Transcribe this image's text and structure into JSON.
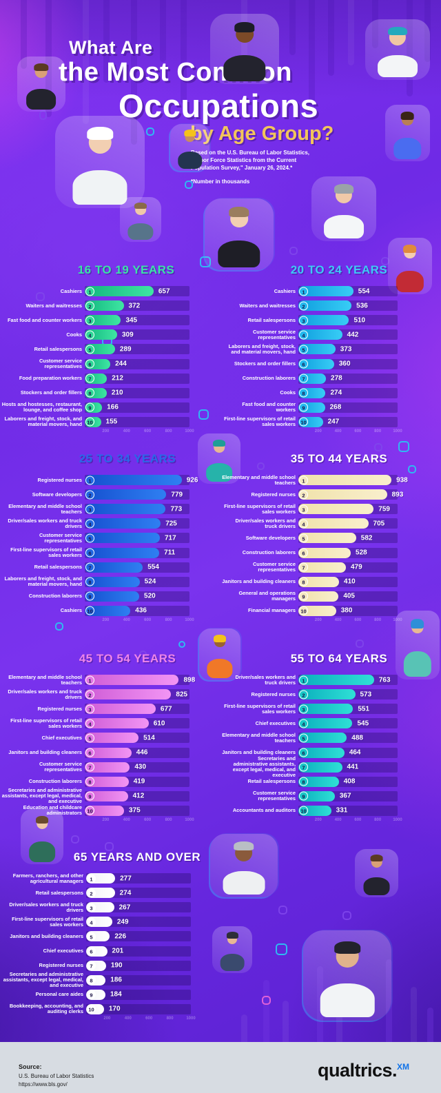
{
  "header": {
    "title_line1": "What Are",
    "title_line2": "the Most Common",
    "title_line3": "Occupations",
    "subtitle": "by Age Group?",
    "source_note": "Based on the U.S. Bureau of Labor Statistics, \"Labor Force Statistics from the Current Population Survey,\" January 26, 2024.*",
    "footnote": "*Number in thousands"
  },
  "chart_data": [
    {
      "type": "bar",
      "title": "16 TO 19 YEARS",
      "xlim": [
        0,
        1000
      ],
      "unit": "thousands",
      "title_color": "#3be3a6",
      "bar_gradient": [
        "#12b67e",
        "#3fe6a3"
      ],
      "rank_bg": "#2fd998",
      "categories": [
        "Cashiers",
        "Waiters and waitresses",
        "Fast food and counter workers",
        "Cooks",
        "Retail salespersons",
        "Customer service representatives",
        "Food preparation workers",
        "Stockers and order fillers",
        "Hosts and hostesses, restaurant, lounge, and coffee shop",
        "Laborers and freight, stock, and material movers, hand"
      ],
      "values": [
        657,
        372,
        345,
        309,
        289,
        244,
        212,
        210,
        166,
        155
      ]
    },
    {
      "type": "bar",
      "title": "20 TO 24 YEARS",
      "xlim": [
        0,
        1000
      ],
      "unit": "thousands",
      "title_color": "#3ec9f6",
      "bar_gradient": [
        "#0f9ede",
        "#38cdf6"
      ],
      "rank_bg": "#24baef",
      "categories": [
        "Cashiers",
        "Waiters and waitresses",
        "Retail salespersons",
        "Customer service representatives",
        "Laborers and freight, stock, and material movers, hand",
        "Stockers and order fillers",
        "Construction laborers",
        "Cooks",
        "Fast food and counter workers",
        "First-line supervisors of retail sales workers"
      ],
      "values": [
        554,
        536,
        510,
        442,
        373,
        360,
        278,
        274,
        268,
        247
      ]
    },
    {
      "type": "bar",
      "title": "25 TO 34 YEARS",
      "xlim": [
        0,
        1000
      ],
      "unit": "thousands",
      "title_color": "#2c67e8",
      "bar_gradient": [
        "#1550cf",
        "#2f7ff2"
      ],
      "rank_bg": "#2268e2",
      "categories": [
        "Registered nurses",
        "Software developers",
        "Elementary and middle school teachers",
        "Driver/sales workers and truck drivers",
        "Customer service representatives",
        "First-line supervisors of retail sales workers",
        "Retail salespersons",
        "Laborers and freight, stock, and material movers, hand",
        "Construction laborers",
        "Cashiers"
      ],
      "values": [
        926,
        779,
        773,
        725,
        717,
        711,
        554,
        524,
        520,
        436
      ]
    },
    {
      "type": "bar",
      "title": "35 TO 44 YEARS",
      "xlim": [
        0,
        1000
      ],
      "unit": "thousands",
      "title_color": "#ffffff",
      "bar_gradient": [
        "#f0e2ab",
        "#f9efcd"
      ],
      "rank_bg": "#f5e9c0",
      "categories": [
        "Elementary and middle school teachers",
        "Registered nurses",
        "First-line supervisors of retail sales workers",
        "Driver/sales workers and truck drivers",
        "Software developers",
        "Construction laborers",
        "Customer service representatives",
        "Janitors and building cleaners",
        "General and operations managers",
        "Financial managers"
      ],
      "values": [
        938,
        893,
        759,
        705,
        582,
        528,
        479,
        410,
        405,
        380
      ]
    },
    {
      "type": "bar",
      "title": "45 TO 54 YEARS",
      "xlim": [
        0,
        1000
      ],
      "unit": "thousands",
      "title_color": "#ee85e9",
      "bar_gradient": [
        "#cf5cd6",
        "#f295f4"
      ],
      "rank_bg": "#e478e6",
      "categories": [
        "Elementary and middle school teachers",
        "Driver/sales workers and truck drivers",
        "Registered nurses",
        "First-line supervisors of retail sales workers",
        "Chief executives",
        "Janitors and building cleaners",
        "Customer service representatives",
        "Construction laborers",
        "Secretaries and administrative assistants, except legal, medical, and executive",
        "Education and childcare administrators"
      ],
      "values": [
        898,
        825,
        677,
        610,
        514,
        446,
        430,
        419,
        412,
        375
      ]
    },
    {
      "type": "bar",
      "title": "55 TO 64 YEARS",
      "xlim": [
        0,
        1000
      ],
      "unit": "thousands",
      "title_color": "#ffffff",
      "bar_gradient": [
        "#0aaebc",
        "#2fe0d6"
      ],
      "rank_bg": "#19c8c8",
      "categories": [
        "Driver/sales workers and truck drivers",
        "Registered nurses",
        "First-line supervisors of retail sales workers",
        "Chief executives",
        "Elementary and middle school teachers",
        "Janitors and building cleaners",
        "Secretaries and administrative assistants, except legal, medical, and executive",
        "Retail salespersons",
        "Customer service representatives",
        "Accountants and auditors"
      ],
      "values": [
        763,
        573,
        551,
        545,
        488,
        464,
        441,
        408,
        367,
        331
      ]
    },
    {
      "type": "bar",
      "title": "65 YEARS AND OVER",
      "xlim": [
        0,
        1000
      ],
      "unit": "thousands",
      "title_color": "#ffffff",
      "bar_gradient": [
        "#f2f2f7",
        "#ffffff"
      ],
      "rank_bg": "#ffffff",
      "categories": [
        "Farmers, ranchers, and other agricultural managers",
        "Retail salespersons",
        "Driver/sales workers and truck drivers",
        "First-line supervisors of retail sales workers",
        "Janitors and building cleaners",
        "Chief executives",
        "Registered nurses",
        "Secretaries and administrative assistants, except legal, medical, and executive",
        "Personal care aides",
        "Bookkeeping, accounting, and auditing clerks"
      ],
      "values": [
        277,
        274,
        267,
        249,
        226,
        201,
        190,
        186,
        184,
        170
      ]
    }
  ],
  "axis_ticks": [
    "200",
    "400",
    "600",
    "800",
    "1000"
  ],
  "avatars": [
    "businessman",
    "female-chef",
    "bookseller",
    "nurse",
    "construction-worker-yellow-helmet",
    "sales-clerk-woman",
    "grocer",
    "tour-guide-with-flag",
    "call-center-agent",
    "cashier-red-vest",
    "woman-in-hijab",
    "construction-worker-orange",
    "surgeon",
    "man-with-suspenders",
    "elderly-woman-white-coat",
    "bookseller-small",
    "worker-with-toolbelt",
    "airline-captain"
  ],
  "footer": {
    "source_label": "Source:",
    "source_line1": "U.S. Bureau of Labor Statistics",
    "source_line2": "https://www.bls.gov/",
    "brand": "qualtrics.",
    "brand_sup": "XM"
  },
  "colors": {
    "background": "#6f2ae6",
    "accent_gold": "#f2c45c",
    "footer_bg": "#d7dce2"
  }
}
